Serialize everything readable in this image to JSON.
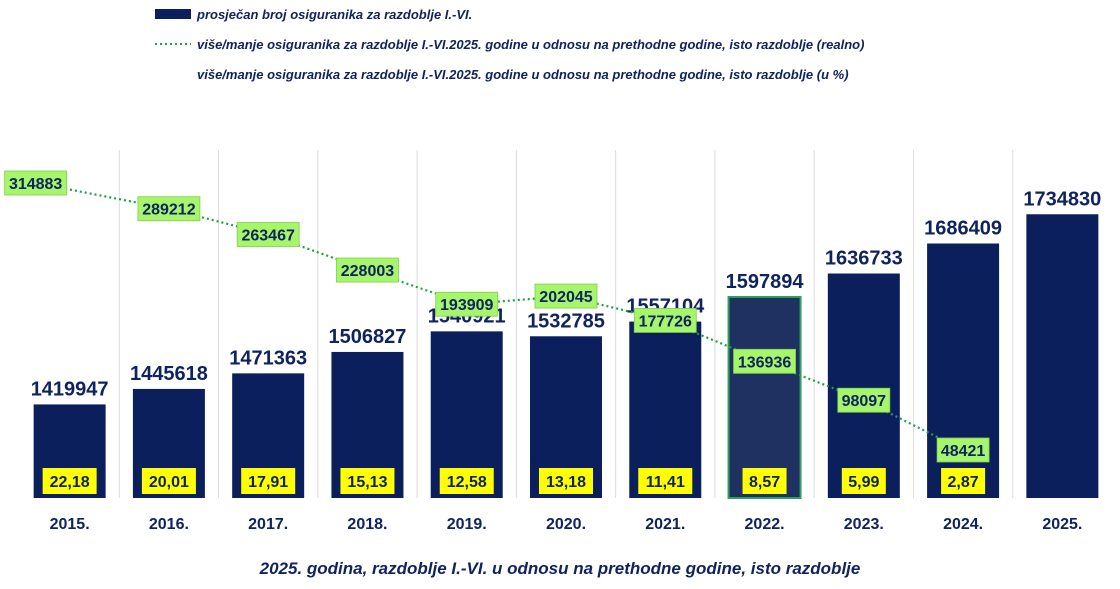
{
  "chart_data": {
    "type": "bar",
    "categories": [
      "2015.",
      "2016.",
      "2017.",
      "2018.",
      "2019.",
      "2020.",
      "2021.",
      "2022.",
      "2023.",
      "2024.",
      "2025."
    ],
    "series": [
      {
        "name": "prosječan broj osiguranika za razdoblje I.-VI.",
        "type": "bar",
        "values": [
          1419947,
          1445618,
          1471363,
          1506827,
          1540921,
          1532785,
          1557104,
          1597894,
          1636733,
          1686409,
          1734830
        ],
        "highlighted_index": 7
      },
      {
        "name": "više/manje osiguranika za razdoblje I.-VI.2025. godine u odnosu na prethodne godine, isto razdoblje (realno)",
        "type": "line",
        "style": "dotted",
        "values": [
          314883,
          289212,
          263467,
          228003,
          193909,
          202045,
          177726,
          136936,
          98097,
          48421,
          null
        ],
        "labels": [
          "314883",
          "289212",
          "263467",
          "228003",
          "193909",
          "202045",
          "177726",
          "136936",
          "98097",
          "48421",
          null
        ]
      },
      {
        "name": "više/manje osiguranika za razdoblje I.-VI.2025. godine u odnosu na prethodne godine, isto razdoblje (u %)",
        "type": "label",
        "values": [
          22.18,
          20.01,
          17.91,
          15.13,
          12.58,
          13.18,
          11.41,
          8.57,
          5.99,
          2.87,
          null
        ],
        "labels": [
          "22,18",
          "20,01",
          "17,91",
          "15,13",
          "12,58",
          "13,18",
          "11,41",
          "8,57",
          "5,99",
          "2,87",
          null
        ]
      }
    ],
    "bar_labels": [
      "1419947",
      "1445618",
      "1471363",
      "1506827",
      "1540921",
      "1532785",
      "1557104",
      "1597894",
      "1636733",
      "1686409",
      "1734830"
    ],
    "xlabel": "2025. godina, razdoblje I.-VI. u odnosu na prethodne godine, isto razdoblje",
    "ylabel": "",
    "legend_position": "top",
    "grid": false,
    "colors": {
      "bar": "#0b1f5c",
      "bar_highlight": "#1e3161",
      "bar_highlight_border": "#2fa05a",
      "line": "#1f9e47",
      "green_label": "#a6f56a",
      "yellow_label": "#ffff00",
      "text": "#0f2360",
      "separator": "#dcdcdc"
    }
  }
}
